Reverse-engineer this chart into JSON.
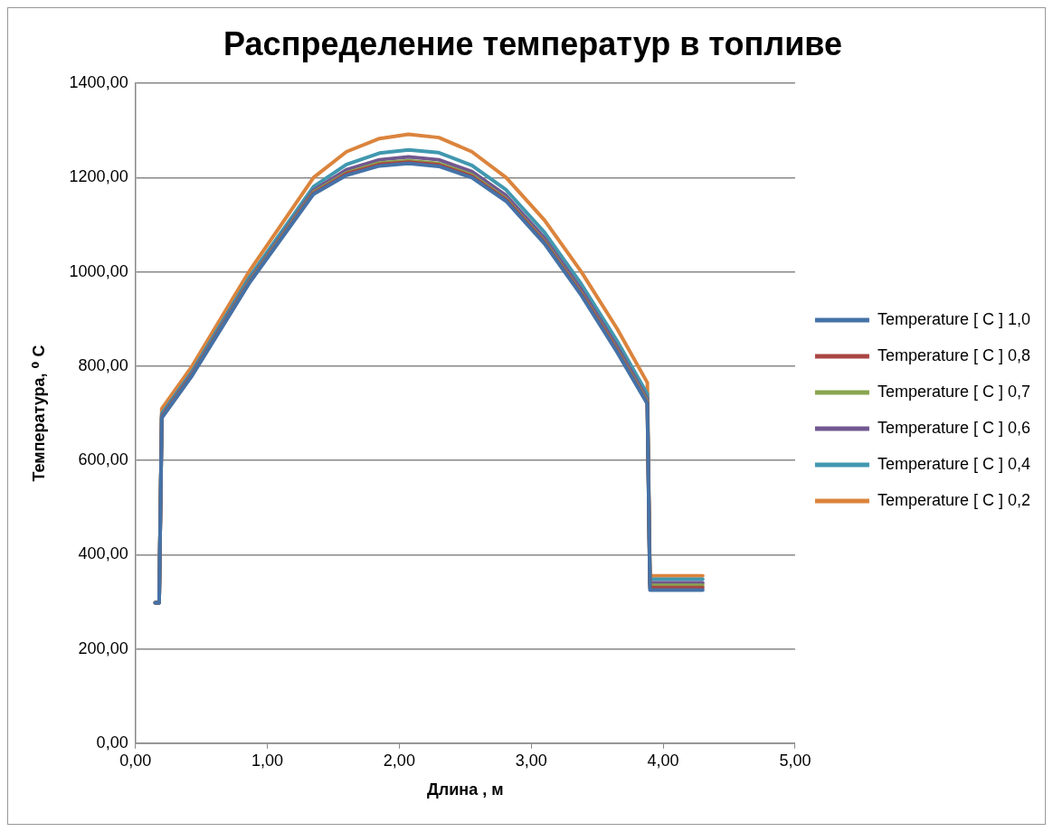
{
  "chart_data": {
    "type": "line",
    "title": "Распределение температур в топливе",
    "xlabel": "Длина , м",
    "ylabel": "Температура, ⁰ C",
    "x": [
      0.15,
      0.18,
      0.2,
      0.43,
      0.86,
      1.35,
      1.6,
      1.85,
      2.07,
      2.3,
      2.55,
      2.81,
      3.1,
      3.38,
      3.65,
      3.88,
      3.9,
      4.3
    ],
    "series": [
      {
        "name": "Temperature [ C ] 1,0",
        "color": "#4572a7",
        "values": [
          298,
          298,
          690,
          780,
          975,
          1165,
          1205,
          1225,
          1230,
          1224,
          1200,
          1150,
          1060,
          950,
          830,
          720,
          325,
          325
        ]
      },
      {
        "name": "Temperature [ C ] 0,8",
        "color": "#aa4643",
        "values": [
          298,
          298,
          691,
          781,
          976,
          1167,
          1208,
          1228,
          1233,
          1227,
          1203,
          1153,
          1063,
          953,
          833,
          722,
          330,
          330
        ]
      },
      {
        "name": "Temperature [ C ] 0,7",
        "color": "#89a54e",
        "values": [
          298,
          298,
          692,
          782,
          978,
          1169,
          1210,
          1231,
          1236,
          1230,
          1206,
          1155,
          1065,
          955,
          835,
          725,
          335,
          335
        ]
      },
      {
        "name": "Temperature [ C ] 0,6",
        "color": "#71588f",
        "values": [
          298,
          298,
          695,
          785,
          981,
          1173,
          1217,
          1238,
          1244,
          1238,
          1213,
          1162,
          1072,
          962,
          842,
          730,
          340,
          340
        ]
      },
      {
        "name": "Temperature [ C ] 0,4",
        "color": "#4198af",
        "values": [
          298,
          298,
          699,
          789,
          987,
          1181,
          1228,
          1252,
          1259,
          1253,
          1226,
          1174,
          1084,
          974,
          854,
          741,
          348,
          348
        ]
      },
      {
        "name": "Temperature [ C ] 0,2",
        "color": "#db843d",
        "values": [
          298,
          298,
          710,
          800,
          1000,
          1200,
          1255,
          1283,
          1292,
          1285,
          1255,
          1200,
          1110,
          1000,
          880,
          765,
          355,
          355
        ]
      }
    ],
    "xlim": [
      0,
      5
    ],
    "xticks": [
      {
        "value": 0,
        "label": "0,00"
      },
      {
        "value": 1,
        "label": "1,00"
      },
      {
        "value": 2,
        "label": "2,00"
      },
      {
        "value": 3,
        "label": "3,00"
      },
      {
        "value": 4,
        "label": "4,00"
      },
      {
        "value": 5,
        "label": "5,00"
      }
    ],
    "ylim": [
      0,
      1400
    ],
    "yticks": [
      {
        "value": 0,
        "label": "0,00"
      },
      {
        "value": 200,
        "label": "200,00"
      },
      {
        "value": 400,
        "label": "400,00"
      },
      {
        "value": 600,
        "label": "600,00"
      },
      {
        "value": 800,
        "label": "800,00"
      },
      {
        "value": 1000,
        "label": "1000,00"
      },
      {
        "value": 1200,
        "label": "1200,00"
      },
      {
        "value": 1400,
        "label": "1400,00"
      }
    ],
    "grid": "y",
    "legend": "right",
    "marker": "none",
    "line_style": "solid"
  }
}
